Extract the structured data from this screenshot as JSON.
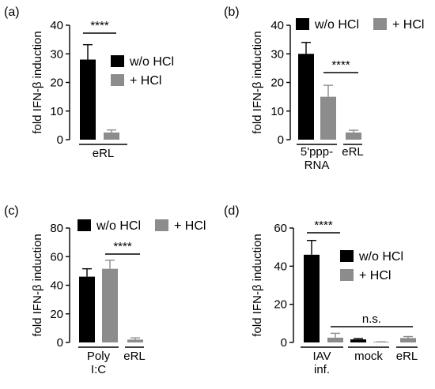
{
  "colors": {
    "dark": "#000000",
    "grey": "#8c8c8c"
  },
  "chart_data": [
    {
      "type": "bar",
      "panel_label": "(a)",
      "ylabel": "fold IFN-β induction",
      "ylim": [
        0,
        40
      ],
      "yticks": [
        "0",
        "10",
        "20",
        "30",
        "40"
      ],
      "groups": [
        {
          "label": "eRL",
          "bars": [
            0,
            1
          ]
        }
      ],
      "legend": {
        "position": "right",
        "entries": [
          "w/o HCl",
          "+ HCl"
        ]
      },
      "bars": [
        {
          "series": "w/o HCl",
          "value": 28,
          "error": 5.2
        },
        {
          "series": "+ HCl",
          "value": 2.5,
          "error": 0.9
        }
      ],
      "annotations": [
        {
          "text": "****",
          "from": 0,
          "to": 1
        }
      ]
    },
    {
      "type": "bar",
      "panel_label": "(b)",
      "ylabel": "fold IFN-β induction",
      "ylim": [
        0,
        40
      ],
      "yticks": [
        "0",
        "10",
        "20",
        "30",
        "40"
      ],
      "groups": [
        {
          "label": "5'ppp-\nRNA",
          "bars": [
            0,
            1
          ]
        },
        {
          "label": "eRL",
          "bars": [
            2
          ]
        }
      ],
      "legend": {
        "position": "top",
        "entries": [
          "w/o HCl",
          "+ HCl"
        ]
      },
      "bars": [
        {
          "series": "w/o HCl",
          "value": 30,
          "error": 4
        },
        {
          "series": "+ HCl",
          "value": 15,
          "error": 4
        },
        {
          "series": "+ HCl",
          "value": 2.5,
          "error": 0.8
        }
      ],
      "annotations": [
        {
          "text": "****",
          "from": 1,
          "to": 2
        }
      ]
    },
    {
      "type": "bar",
      "panel_label": "(c)",
      "ylabel": "fold IFN-β induction",
      "ylim": [
        0,
        80
      ],
      "yticks": [
        "0",
        "20",
        "40",
        "60",
        "80"
      ],
      "groups": [
        {
          "label": "Poly\nI:C",
          "bars": [
            0,
            1
          ]
        },
        {
          "label": "eRL",
          "bars": [
            2
          ]
        }
      ],
      "legend": {
        "position": "top",
        "entries": [
          "w/o HCl",
          "+ HCl"
        ]
      },
      "bars": [
        {
          "series": "w/o HCl",
          "value": 46,
          "error": 5.5
        },
        {
          "series": "+ HCl",
          "value": 51.5,
          "error": 6
        },
        {
          "series": "+ HCl",
          "value": 2,
          "error": 1.2
        }
      ],
      "annotations": [
        {
          "text": "****",
          "from": 1,
          "to": 2
        }
      ]
    },
    {
      "type": "bar",
      "panel_label": "(d)",
      "ylabel": "fold IFN-β induction",
      "ylim": [
        0,
        60
      ],
      "yticks": [
        "0",
        "20",
        "40",
        "60"
      ],
      "groups": [
        {
          "label": "IAV\ninf.",
          "bars": [
            0,
            1
          ]
        },
        {
          "label": "mock",
          "bars": [
            2,
            3
          ]
        },
        {
          "label": "eRL",
          "bars": [
            4
          ]
        }
      ],
      "legend": {
        "position": "right",
        "entries": [
          "w/o HCl",
          "+ HCl"
        ]
      },
      "bars": [
        {
          "series": "w/o HCl",
          "value": 46,
          "error": 7.5
        },
        {
          "series": "+ HCl",
          "value": 2.5,
          "error": 2.3
        },
        {
          "series": "w/o HCl",
          "value": 1.6,
          "error": 0.4
        },
        {
          "series": "+ HCl",
          "value": 0.2,
          "error": 0.1
        },
        {
          "series": "+ HCl",
          "value": 2.3,
          "error": 0.8
        }
      ],
      "annotations": [
        {
          "text": "****",
          "from": 0,
          "to": 1
        },
        {
          "text": "n.s.",
          "from": 1,
          "to": 4
        }
      ]
    }
  ]
}
